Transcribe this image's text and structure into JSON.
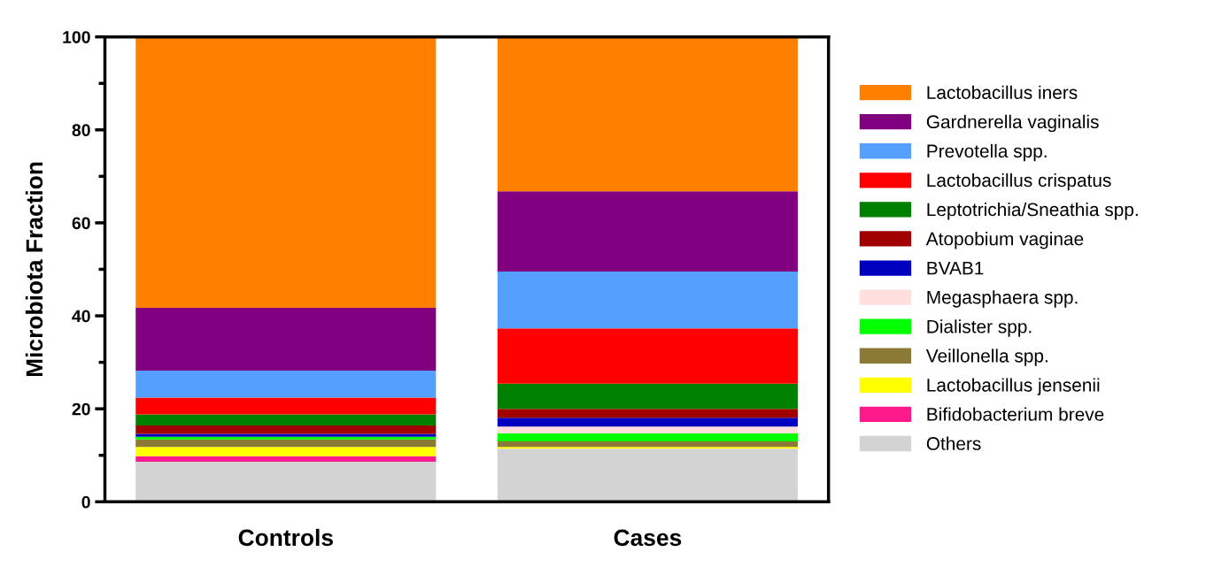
{
  "chart_data": {
    "type": "bar",
    "stacked": true,
    "ylabel": "Microbiota Fraction",
    "categories": [
      "Controls",
      "Cases"
    ],
    "ylim": [
      0,
      100
    ],
    "yticks": [
      0,
      {
        "value": 10,
        "label": null
      },
      20,
      {
        "value": 30,
        "label": null
      },
      40,
      {
        "value": 50,
        "label": null
      },
      60,
      {
        "value": 70,
        "label": null
      },
      80,
      {
        "value": 90,
        "label": null
      },
      100
    ],
    "grid": false,
    "legend": "right",
    "series": [
      {
        "name": "Others",
        "color": "#d3d3d3",
        "values": [
          8.6,
          11.4
        ]
      },
      {
        "name": "Bifidobacterium breve",
        "color": "#ff1a8c",
        "values": [
          1.2,
          0
        ]
      },
      {
        "name": "Lactobacillus jensenii",
        "color": "#ffff00",
        "values": [
          2.0,
          0.4
        ]
      },
      {
        "name": "Veillonella spp.",
        "color": "#8b7a35",
        "values": [
          1.6,
          1.2
        ]
      },
      {
        "name": "Dialister spp.",
        "color": "#00ff00",
        "values": [
          0.6,
          1.7
        ]
      },
      {
        "name": "Megasphaera spp.",
        "color": "#ffdede",
        "values": [
          null,
          1.5
        ]
      },
      {
        "name": "BVAB1",
        "color": "#0000c0",
        "values": [
          0.6,
          1.9
        ]
      },
      {
        "name": "Atopobium vaginae",
        "color": "#a00000",
        "values": [
          1.8,
          1.9
        ]
      },
      {
        "name": "Leptotrichia/Sneathia spp.",
        "color": "#008000",
        "values": [
          2.4,
          5.4
        ]
      },
      {
        "name": "Lactobacillus crispatus",
        "color": "#ff0000",
        "values": [
          3.6,
          11.9
        ]
      },
      {
        "name": "Prevotella spp.",
        "color": "#55a0ff",
        "values": [
          5.8,
          12.2
        ]
      },
      {
        "name": "Gardnerella vaginalis",
        "color": "#800080",
        "values": [
          13.5,
          17.3
        ]
      },
      {
        "name": "Lactobacillus iners",
        "color": "#ff8000",
        "values": [
          58.2,
          33.2
        ]
      }
    ]
  }
}
